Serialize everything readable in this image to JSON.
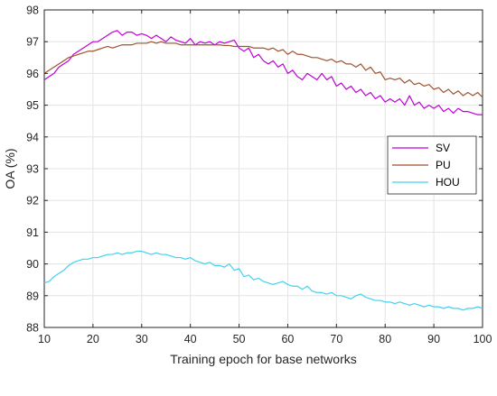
{
  "chart_data": {
    "type": "line",
    "title": "",
    "xlabel": "Training epoch for base networks",
    "ylabel": "OA (%)",
    "xlim": [
      10,
      100
    ],
    "ylim": [
      88,
      98
    ],
    "xticks": [
      10,
      20,
      30,
      40,
      50,
      60,
      70,
      80,
      90,
      100
    ],
    "yticks": [
      88,
      89,
      90,
      91,
      92,
      93,
      94,
      95,
      96,
      97,
      98
    ],
    "grid": true,
    "legend_position": "right",
    "x": [
      10,
      11,
      12,
      13,
      14,
      15,
      16,
      17,
      18,
      19,
      20,
      21,
      22,
      23,
      24,
      25,
      26,
      27,
      28,
      29,
      30,
      31,
      32,
      33,
      34,
      35,
      36,
      37,
      38,
      39,
      40,
      41,
      42,
      43,
      44,
      45,
      46,
      47,
      48,
      49,
      50,
      51,
      52,
      53,
      54,
      55,
      56,
      57,
      58,
      59,
      60,
      61,
      62,
      63,
      64,
      65,
      66,
      67,
      68,
      69,
      70,
      71,
      72,
      73,
      74,
      75,
      76,
      77,
      78,
      79,
      80,
      81,
      82,
      83,
      84,
      85,
      86,
      87,
      88,
      89,
      90,
      91,
      92,
      93,
      94,
      95,
      96,
      97,
      98,
      99,
      100
    ],
    "series": [
      {
        "name": "SV",
        "color": "#c000d8",
        "values": [
          95.8,
          95.9,
          96.0,
          96.2,
          96.3,
          96.4,
          96.6,
          96.7,
          96.8,
          96.9,
          97.0,
          97.0,
          97.1,
          97.2,
          97.3,
          97.35,
          97.2,
          97.3,
          97.3,
          97.2,
          97.25,
          97.2,
          97.1,
          97.2,
          97.1,
          97.0,
          97.15,
          97.05,
          97.0,
          96.95,
          97.1,
          96.9,
          97.0,
          96.95,
          97.0,
          96.9,
          97.0,
          96.95,
          97.0,
          97.05,
          96.8,
          96.7,
          96.8,
          96.5,
          96.6,
          96.4,
          96.3,
          96.4,
          96.2,
          96.3,
          96.0,
          96.1,
          95.9,
          95.8,
          96.0,
          95.9,
          95.8,
          96.0,
          95.8,
          95.9,
          95.6,
          95.7,
          95.5,
          95.6,
          95.4,
          95.5,
          95.3,
          95.4,
          95.2,
          95.3,
          95.1,
          95.2,
          95.1,
          95.2,
          95.0,
          95.3,
          95.0,
          95.1,
          94.9,
          95.0,
          94.9,
          95.0,
          94.8,
          94.9,
          94.75,
          94.9,
          94.8,
          94.8,
          94.75,
          94.7,
          94.7
        ]
      },
      {
        "name": "PU",
        "color": "#a0522d",
        "values": [
          96.0,
          96.1,
          96.2,
          96.3,
          96.4,
          96.5,
          96.55,
          96.6,
          96.65,
          96.7,
          96.7,
          96.75,
          96.8,
          96.85,
          96.8,
          96.85,
          96.9,
          96.9,
          96.9,
          96.95,
          96.95,
          96.95,
          97.0,
          96.95,
          97.0,
          96.95,
          96.95,
          96.95,
          96.9,
          96.9,
          96.9,
          96.9,
          96.9,
          96.9,
          96.9,
          96.9,
          96.9,
          96.88,
          96.88,
          96.85,
          96.85,
          96.85,
          96.85,
          96.8,
          96.8,
          96.8,
          96.75,
          96.8,
          96.7,
          96.75,
          96.6,
          96.7,
          96.6,
          96.6,
          96.55,
          96.5,
          96.5,
          96.45,
          96.4,
          96.45,
          96.35,
          96.4,
          96.3,
          96.3,
          96.2,
          96.3,
          96.1,
          96.2,
          96.0,
          96.05,
          95.8,
          95.85,
          95.8,
          95.85,
          95.7,
          95.8,
          95.65,
          95.7,
          95.6,
          95.65,
          95.5,
          95.55,
          95.4,
          95.5,
          95.35,
          95.45,
          95.3,
          95.4,
          95.3,
          95.4,
          95.25
        ]
      },
      {
        "name": "HOU",
        "color": "#3fd3f0",
        "values": [
          89.4,
          89.45,
          89.6,
          89.7,
          89.8,
          89.95,
          90.05,
          90.1,
          90.15,
          90.15,
          90.2,
          90.2,
          90.25,
          90.3,
          90.3,
          90.35,
          90.3,
          90.35,
          90.35,
          90.4,
          90.4,
          90.35,
          90.3,
          90.35,
          90.3,
          90.3,
          90.25,
          90.2,
          90.2,
          90.15,
          90.2,
          90.1,
          90.05,
          90.0,
          90.05,
          89.95,
          89.95,
          89.9,
          90.0,
          89.8,
          89.85,
          89.6,
          89.65,
          89.5,
          89.55,
          89.45,
          89.4,
          89.35,
          89.4,
          89.45,
          89.35,
          89.3,
          89.3,
          89.2,
          89.3,
          89.15,
          89.1,
          89.1,
          89.05,
          89.1,
          89.0,
          89.0,
          88.95,
          88.9,
          89.0,
          89.05,
          88.95,
          88.9,
          88.85,
          88.85,
          88.8,
          88.8,
          88.75,
          88.8,
          88.75,
          88.7,
          88.75,
          88.7,
          88.65,
          88.7,
          88.65,
          88.65,
          88.6,
          88.65,
          88.6,
          88.6,
          88.55,
          88.6,
          88.6,
          88.65,
          88.6
        ]
      }
    ]
  }
}
